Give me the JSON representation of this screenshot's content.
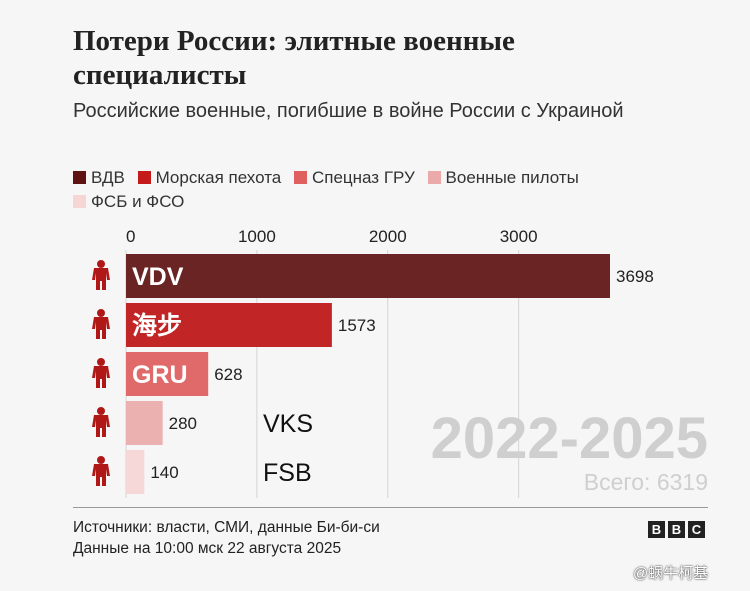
{
  "title": "Потери России: элитные военные специалисты",
  "subtitle": "Российские военные, погибшие в войне России с Украиной",
  "legend": [
    {
      "label": "ВДВ",
      "color": "#5e1212"
    },
    {
      "label": "Морская пехота",
      "color": "#c41a1a"
    },
    {
      "label": "Спецназ ГРУ",
      "color": "#e06060"
    },
    {
      "label": "Военные пилоты",
      "color": "#eaaaaa"
    },
    {
      "label": "ФСБ и ФСО",
      "color": "#f6d5d5"
    }
  ],
  "chart_data": {
    "type": "bar",
    "orientation": "horizontal",
    "categories": [
      "VDV",
      "海步",
      "GRU",
      "VKS",
      "FSB"
    ],
    "values": [
      3698,
      1573,
      628,
      280,
      140
    ],
    "colors": [
      "#6b2424",
      "#c22525",
      "#e06a6a",
      "#ebb0b0",
      "#f6d8d8"
    ],
    "xticks": [
      0,
      1000,
      2000,
      3000
    ],
    "xlim": [
      0,
      3700
    ],
    "grid": true
  },
  "period_label": "2022-2025",
  "total_label": "Всего: 6319",
  "footer": {
    "sources": "Источники: власти, СМИ, данные Би-би-си",
    "date": "Данные на 10:00 мск 22 августа 2025"
  },
  "logo": [
    "B",
    "B",
    "C"
  ],
  "watermark": "@蜗牛柯基",
  "icon": "soldier-icon"
}
